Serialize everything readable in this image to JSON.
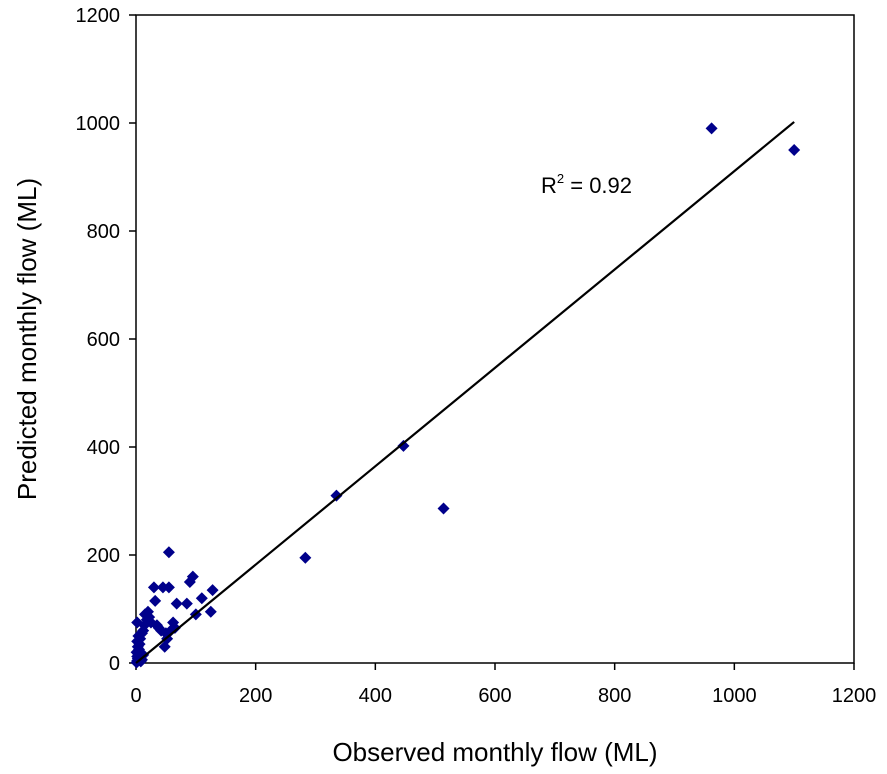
{
  "chart_data": {
    "type": "scatter",
    "xlabel": "Observed monthly flow (ML)",
    "ylabel": "Predicted monthly flow (ML)",
    "xlim": [
      0,
      1200
    ],
    "ylim": [
      0,
      1200
    ],
    "x_ticks": [
      0,
      200,
      400,
      600,
      800,
      1000,
      1200
    ],
    "y_ticks": [
      0,
      200,
      400,
      600,
      800,
      1000,
      1200
    ],
    "grid": false,
    "marker": "diamond",
    "marker_color": "#00008B",
    "points": [
      {
        "x": 1,
        "y": 1
      },
      {
        "x": 2,
        "y": 4
      },
      {
        "x": 3,
        "y": 8
      },
      {
        "x": 2,
        "y": 12
      },
      {
        "x": 4,
        "y": 16
      },
      {
        "x": 1,
        "y": 20
      },
      {
        "x": 5,
        "y": 25
      },
      {
        "x": 3,
        "y": 30
      },
      {
        "x": 6,
        "y": 35
      },
      {
        "x": 2,
        "y": 40
      },
      {
        "x": 8,
        "y": 3
      },
      {
        "x": 10,
        "y": 6
      },
      {
        "x": 12,
        "y": 15
      },
      {
        "x": 7,
        "y": 45
      },
      {
        "x": 4,
        "y": 50
      },
      {
        "x": 2,
        "y": 75
      },
      {
        "x": 10,
        "y": 55
      },
      {
        "x": 12,
        "y": 60
      },
      {
        "x": 14,
        "y": 70
      },
      {
        "x": 15,
        "y": 90
      },
      {
        "x": 18,
        "y": 80
      },
      {
        "x": 20,
        "y": 95
      },
      {
        "x": 22,
        "y": 85
      },
      {
        "x": 25,
        "y": 75
      },
      {
        "x": 30,
        "y": 140
      },
      {
        "x": 32,
        "y": 115
      },
      {
        "x": 35,
        "y": 70
      },
      {
        "x": 38,
        "y": 65
      },
      {
        "x": 42,
        "y": 60
      },
      {
        "x": 45,
        "y": 140
      },
      {
        "x": 48,
        "y": 30
      },
      {
        "x": 50,
        "y": 55
      },
      {
        "x": 52,
        "y": 45
      },
      {
        "x": 55,
        "y": 140
      },
      {
        "x": 55,
        "y": 205
      },
      {
        "x": 58,
        "y": 60
      },
      {
        "x": 62,
        "y": 75
      },
      {
        "x": 65,
        "y": 65
      },
      {
        "x": 68,
        "y": 110
      },
      {
        "x": 85,
        "y": 110
      },
      {
        "x": 90,
        "y": 150
      },
      {
        "x": 95,
        "y": 160
      },
      {
        "x": 100,
        "y": 90
      },
      {
        "x": 110,
        "y": 120
      },
      {
        "x": 125,
        "y": 95
      },
      {
        "x": 128,
        "y": 135
      },
      {
        "x": 283,
        "y": 195
      },
      {
        "x": 335,
        "y": 310
      },
      {
        "x": 447,
        "y": 402
      },
      {
        "x": 514,
        "y": 286
      },
      {
        "x": 962,
        "y": 990
      },
      {
        "x": 1100,
        "y": 950
      }
    ],
    "trendline": {
      "type": "linear",
      "x_start": 0,
      "x_end": 1100,
      "y_start": 0,
      "y_end": 1002
    },
    "annotation": {
      "base": "R",
      "superscript": "2",
      "rest": " = 0.92"
    }
  }
}
